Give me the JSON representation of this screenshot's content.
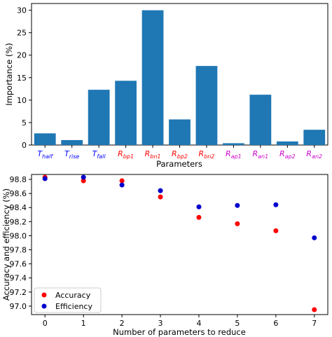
{
  "chart_data": [
    {
      "type": "bar",
      "categories": [
        {
          "base": "T",
          "sub": "half",
          "color": "#0000ff"
        },
        {
          "base": "T",
          "sub": "rise",
          "color": "#0000ff"
        },
        {
          "base": "T",
          "sub": "fall",
          "color": "#0000ff"
        },
        {
          "base": "R",
          "sub": "bp1",
          "color": "#ff0000"
        },
        {
          "base": "R",
          "sub": "bn1",
          "color": "#ff0000"
        },
        {
          "base": "R",
          "sub": "bp2",
          "color": "#ff0000"
        },
        {
          "base": "R",
          "sub": "bn2",
          "color": "#ff0000"
        },
        {
          "base": "R",
          "sub": "ap1",
          "color": "#cc00cc"
        },
        {
          "base": "R",
          "sub": "an1",
          "color": "#cc00cc"
        },
        {
          "base": "R",
          "sub": "ap2",
          "color": "#cc00cc"
        },
        {
          "base": "R",
          "sub": "an2",
          "color": "#cc00cc"
        }
      ],
      "values": [
        2.6,
        1.1,
        12.3,
        14.3,
        30.0,
        5.7,
        17.6,
        0.4,
        11.2,
        0.8,
        3.4
      ],
      "bar_color": "#1f77b4",
      "xlabel": "Parameters",
      "ylabel": "Importance (%)",
      "ylim": [
        0,
        31.5
      ],
      "yticks": [
        0,
        5,
        10,
        15,
        20,
        25,
        30
      ],
      "grid": false
    },
    {
      "type": "scatter",
      "x": [
        0,
        1,
        2,
        3,
        4,
        5,
        6,
        7
      ],
      "series": [
        {
          "name": "Accuracy",
          "color": "#ff0000",
          "values": [
            98.83,
            98.78,
            98.78,
            98.55,
            98.26,
            98.17,
            98.07,
            96.95
          ]
        },
        {
          "name": "Efficiency",
          "color": "#0000cc",
          "values": [
            98.81,
            98.83,
            98.72,
            98.64,
            98.41,
            98.43,
            98.44,
            97.97
          ]
        }
      ],
      "xlabel": "Number of parameters to reduce",
      "ylabel": "Accuracy and efficiency (%)",
      "xlim": [
        -0.35,
        7.35
      ],
      "ylim": [
        96.88,
        98.87
      ],
      "xticks": [
        0,
        1,
        2,
        3,
        4,
        5,
        6,
        7
      ],
      "yticks": [
        "97.0",
        "97.2",
        "97.4",
        "97.6",
        "97.8",
        "98.0",
        "98.2",
        "98.4",
        "98.6",
        "98.8"
      ],
      "legend": "lower-left",
      "grid": false
    }
  ]
}
